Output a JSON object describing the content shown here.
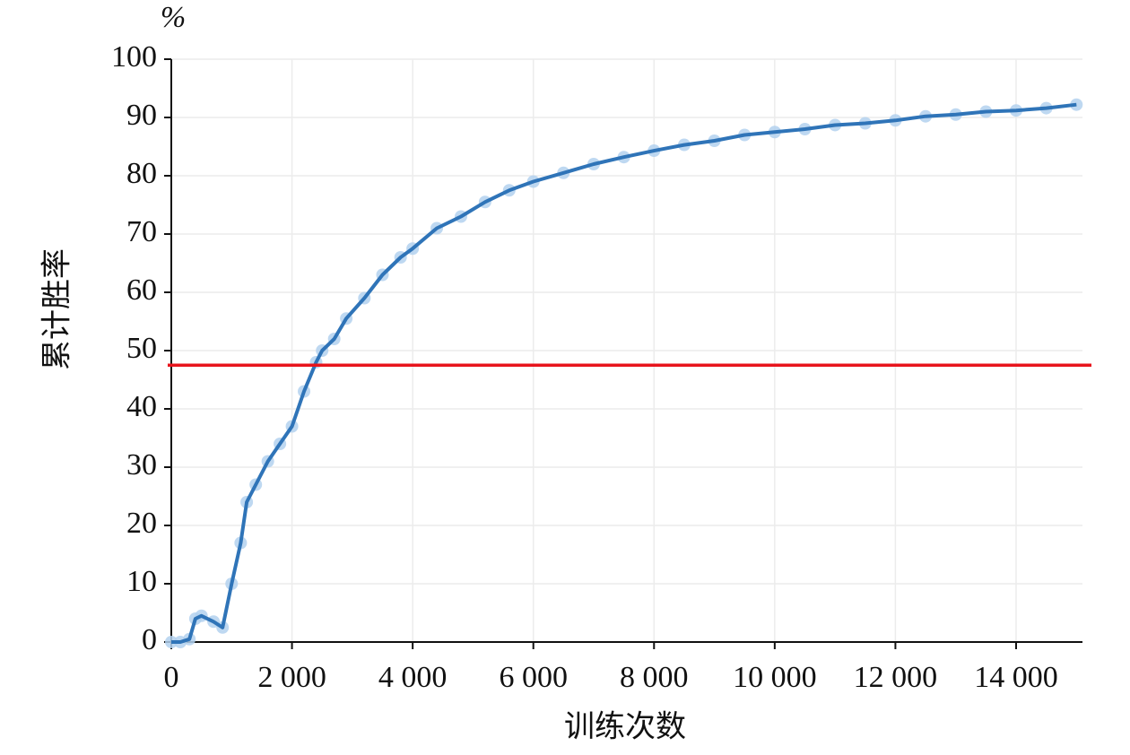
{
  "chart_data": {
    "type": "line",
    "unit_label": "%",
    "x_label": "训练次数",
    "y_label": "累计胜率",
    "x": [
      0,
      150,
      300,
      400,
      500,
      700,
      850,
      1000,
      1150,
      1250,
      1400,
      1600,
      1800,
      2000,
      2200,
      2400,
      2500,
      2700,
      2900,
      3200,
      3500,
      3800,
      4000,
      4400,
      4800,
      5200,
      5600,
      6000,
      6500,
      7000,
      7500,
      8000,
      8500,
      9000,
      9500,
      10000,
      10500,
      11000,
      11500,
      12000,
      12500,
      13000,
      13500,
      14000,
      14500,
      15000
    ],
    "series": [
      {
        "color": "#2f74b8",
        "marker_color": "#b3d1ee",
        "values": [
          0,
          0,
          0.5,
          4,
          4.5,
          3.5,
          2.5,
          10,
          17,
          24,
          27,
          31,
          34,
          37,
          43,
          48,
          50,
          52,
          55.5,
          59,
          63,
          66,
          67.5,
          71,
          73,
          75.5,
          77.5,
          79,
          80.5,
          82,
          83.2,
          84.3,
          85.3,
          86,
          87,
          87.5,
          88,
          88.7,
          89,
          89.5,
          90.2,
          90.5,
          91,
          91.2,
          91.6,
          92.2
        ]
      }
    ],
    "hline": {
      "value": 47.5,
      "color": "#e8141c"
    },
    "xlim": [
      0,
      15100
    ],
    "ylim": [
      0,
      100
    ],
    "xticks": [
      0,
      {
        "value": 2000,
        "label": "2 000"
      },
      {
        "value": 4000,
        "label": "4 000"
      },
      {
        "value": 6000,
        "label": "6 000"
      },
      {
        "value": 8000,
        "label": "8 000"
      },
      {
        "value": 10000,
        "label": "10 000"
      },
      {
        "value": 12000,
        "label": "12 000"
      },
      {
        "value": 14000,
        "label": "14 000"
      }
    ],
    "yticks": [
      0,
      10,
      20,
      30,
      40,
      50,
      60,
      70,
      80,
      90,
      100
    ],
    "grid": true
  }
}
